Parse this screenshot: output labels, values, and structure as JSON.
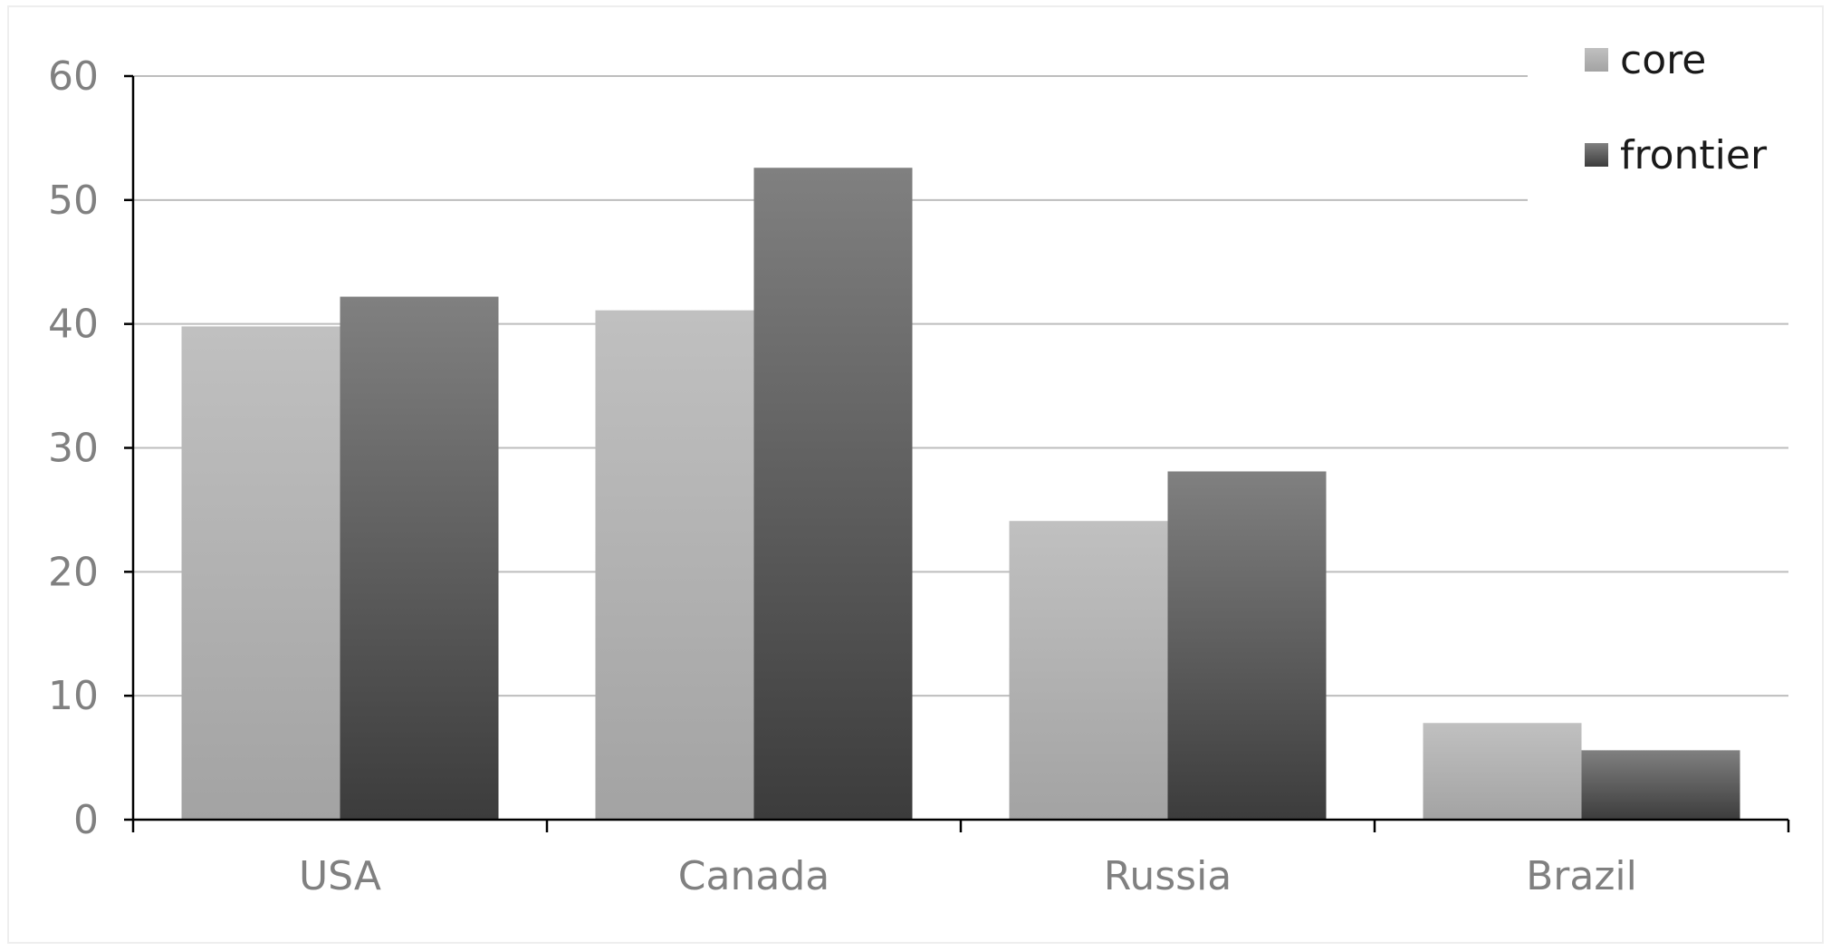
{
  "chart_data": {
    "type": "bar",
    "title": "",
    "xlabel": "",
    "ylabel": "",
    "categories": [
      "USA",
      "Canada",
      "Russia",
      "Brazil"
    ],
    "series": [
      {
        "name": "core",
        "values": [
          39.8,
          41.1,
          24.1,
          7.8
        ],
        "color_top": "#c0c0c0",
        "color_bottom": "#a3a3a3"
      },
      {
        "name": "frontier",
        "values": [
          42.2,
          52.6,
          28.1,
          5.6
        ],
        "color_top": "#808080",
        "color_bottom": "#3c3c3c"
      }
    ],
    "ylim": [
      0,
      60
    ],
    "yticks": [
      "0",
      "10",
      "20",
      "30",
      "40",
      "50",
      "60"
    ],
    "grid": true,
    "legend_position": "top-right",
    "colors": {
      "axis": "#000000",
      "grid": "#bdbdbd",
      "tick_text": "#808080",
      "legend_text": "#1a1a1a"
    }
  }
}
